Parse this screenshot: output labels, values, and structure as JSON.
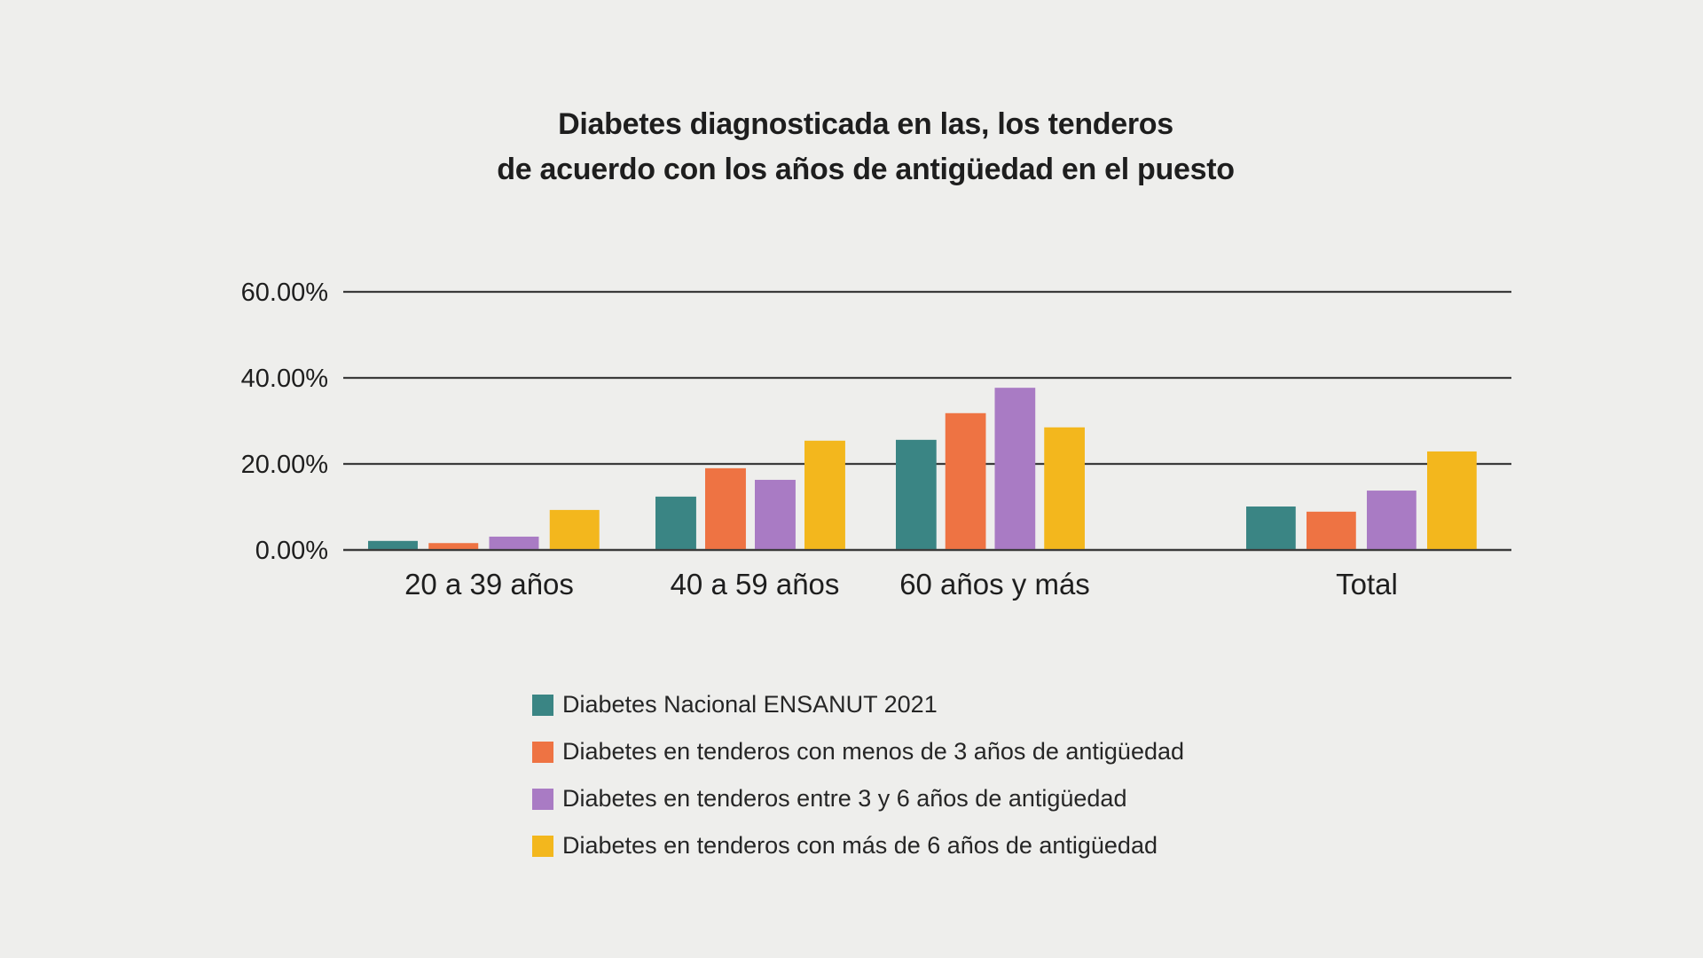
{
  "title_lines": [
    "Diabetes diagnosticada en las, los tenderos",
    "de acuerdo con los años de antigüedad en el puesto"
  ],
  "chart_data": {
    "type": "bar",
    "title": "Diabetes diagnosticada en las, los tenderos de acuerdo con los años de antigüedad en el puesto",
    "xlabel": "",
    "ylabel": "",
    "ylim": [
      0,
      60
    ],
    "yticks": [
      0,
      20,
      40,
      60
    ],
    "ytick_labels": [
      "0.00%",
      "20.00%",
      "40.00%",
      "60.00%"
    ],
    "grid": true,
    "legend_position": "bottom",
    "categories": [
      "20 a 39 años",
      "40 a 59 años",
      "60 años y más",
      "Total"
    ],
    "series": [
      {
        "name": "Diabetes Nacional ENSANUT 2021",
        "color": "#3a8584",
        "values": [
          2.1,
          12.4,
          25.6,
          10.1
        ]
      },
      {
        "name": "Diabetes en tenderos con menos de 3 años de antigüedad",
        "color": "#ee7343",
        "values": [
          1.6,
          19.0,
          31.8,
          8.9
        ]
      },
      {
        "name": "Diabetes en tenderos entre 3 y 6 años de antigüedad",
        "color": "#a97bc4",
        "values": [
          3.1,
          16.3,
          37.7,
          13.8
        ]
      },
      {
        "name": "Diabetes en tenderos con más de 6 años de antigüedad",
        "color": "#f3b71d",
        "values": [
          9.3,
          25.4,
          28.5,
          22.9
        ]
      }
    ]
  }
}
